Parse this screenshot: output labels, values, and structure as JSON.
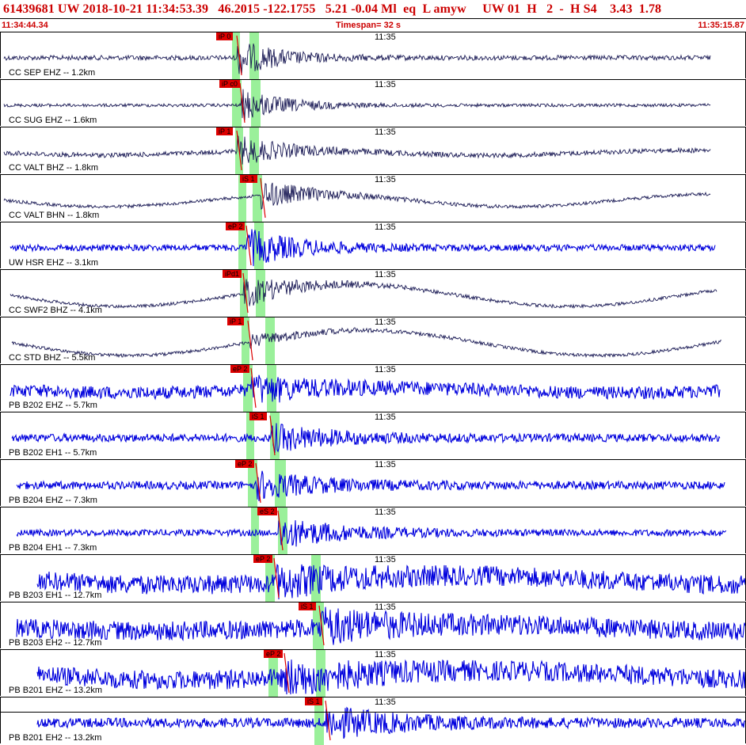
{
  "header": {
    "title": "61439681 UW 2018-10-21 11:34:53.39   46.2015 -122.1755   5.21 -0.04 Ml  eq  L amyw     UW 01  H   2  -  H S4    3.43  1.78",
    "start_time": "11:34:44.34",
    "timespan": "Timespan= 32 s",
    "end_time": "11:35:15.87"
  },
  "colors": {
    "header_text": "#cc0000",
    "pick": "#dd0000",
    "window": "#9af09a",
    "trace_dark": "#1a1a55",
    "trace_blue": "#0000dd"
  },
  "clock_label": "11:35",
  "traces": [
    {
      "label": "CC SEP EHZ -- 1.2km",
      "pick": "iP 0",
      "color": "blue-dark"
    },
    {
      "label": "CC SUG EHZ -- 1.6km",
      "pick": "iP c0",
      "color": "blue-dark"
    },
    {
      "label": "CC VALT BHZ -- 1.8km",
      "pick": "iP 1",
      "color": "dark"
    },
    {
      "label": "CC VALT BHN -- 1.8km",
      "pick": "iS 1",
      "color": "dark"
    },
    {
      "label": "UW HSR EHZ -- 3.1km",
      "pick": "eP 2",
      "color": "blue"
    },
    {
      "label": "CC SWF2 BHZ -- 4.1km",
      "pick": "iPd1",
      "color": "dark"
    },
    {
      "label": "CC STD BHZ -- 5.5km",
      "pick": "iP 1",
      "color": "dark"
    },
    {
      "label": "PB B202 EHZ -- 5.7km",
      "pick": "eP 2",
      "color": "blue"
    },
    {
      "label": "PB B202 EH1 -- 5.7km",
      "pick": "iS 1",
      "color": "blue"
    },
    {
      "label": "PB B204 EHZ -- 7.3km",
      "pick": "eP 2",
      "color": "blue"
    },
    {
      "label": "PB B204 EH1 -- 7.3km",
      "pick": "eS 2",
      "color": "blue"
    },
    {
      "label": "PB B203 EH1 -- 12.7km",
      "pick": "eP 2",
      "color": "blue"
    },
    {
      "label": "PB B203 EH2 -- 12.7km",
      "pick": "iS 1",
      "color": "blue"
    },
    {
      "label": "PB B201 EHZ -- 13.2km",
      "pick": "eP 2",
      "color": "blue"
    },
    {
      "label": "PB B201 EH2 -- 13.2km",
      "pick": "iS 1",
      "color": "blue"
    }
  ]
}
